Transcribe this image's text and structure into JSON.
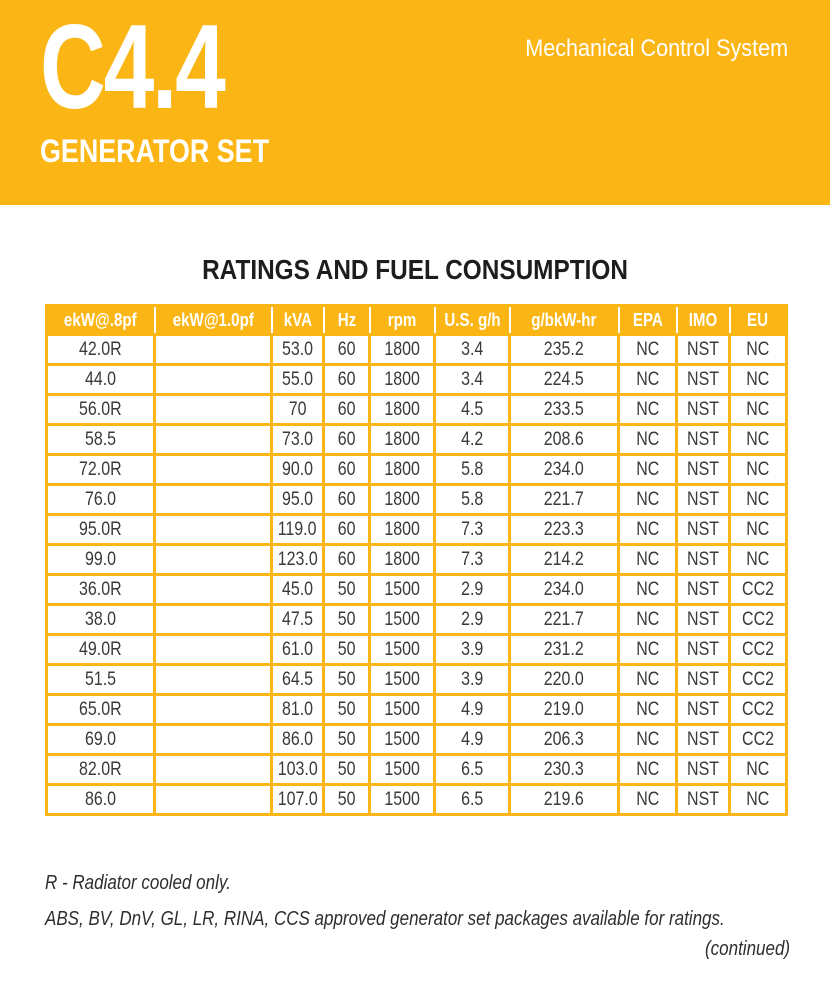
{
  "colors": {
    "accent_yellow": "#FBB615",
    "banner_text": "#FFFFFF",
    "body_text": "#3A3A3A"
  },
  "banner": {
    "model": "C4.4",
    "subtitle": "GENERATOR SET",
    "tagline": "Mechanical Control System"
  },
  "section": {
    "title": "RATINGS AND FUEL CONSUMPTION"
  },
  "table": {
    "columns": [
      "ekW@.8pf",
      "ekW@1.0pf",
      "kVA",
      "Hz",
      "rpm",
      "U.S. g/h",
      "g/bkW-hr",
      "EPA",
      "IMO",
      "EU"
    ],
    "rows": [
      [
        "42.0R",
        "",
        "53.0",
        "60",
        "1800",
        "3.4",
        "235.2",
        "NC",
        "NST",
        "NC"
      ],
      [
        "44.0",
        "",
        "55.0",
        "60",
        "1800",
        "3.4",
        "224.5",
        "NC",
        "NST",
        "NC"
      ],
      [
        "56.0R",
        "",
        "70",
        "60",
        "1800",
        "4.5",
        "233.5",
        "NC",
        "NST",
        "NC"
      ],
      [
        "58.5",
        "",
        "73.0",
        "60",
        "1800",
        "4.2",
        "208.6",
        "NC",
        "NST",
        "NC"
      ],
      [
        "72.0R",
        "",
        "90.0",
        "60",
        "1800",
        "5.8",
        "234.0",
        "NC",
        "NST",
        "NC"
      ],
      [
        "76.0",
        "",
        "95.0",
        "60",
        "1800",
        "5.8",
        "221.7",
        "NC",
        "NST",
        "NC"
      ],
      [
        "95.0R",
        "",
        "119.0",
        "60",
        "1800",
        "7.3",
        "223.3",
        "NC",
        "NST",
        "NC"
      ],
      [
        "99.0",
        "",
        "123.0",
        "60",
        "1800",
        "7.3",
        "214.2",
        "NC",
        "NST",
        "NC"
      ],
      [
        "36.0R",
        "",
        "45.0",
        "50",
        "1500",
        "2.9",
        "234.0",
        "NC",
        "NST",
        "CC2"
      ],
      [
        "38.0",
        "",
        "47.5",
        "50",
        "1500",
        "2.9",
        "221.7",
        "NC",
        "NST",
        "CC2"
      ],
      [
        "49.0R",
        "",
        "61.0",
        "50",
        "1500",
        "3.9",
        "231.2",
        "NC",
        "NST",
        "CC2"
      ],
      [
        "51.5",
        "",
        "64.5",
        "50",
        "1500",
        "3.9",
        "220.0",
        "NC",
        "NST",
        "CC2"
      ],
      [
        "65.0R",
        "",
        "81.0",
        "50",
        "1500",
        "4.9",
        "219.0",
        "NC",
        "NST",
        "CC2"
      ],
      [
        "69.0",
        "",
        "86.0",
        "50",
        "1500",
        "4.9",
        "206.3",
        "NC",
        "NST",
        "CC2"
      ],
      [
        "82.0R",
        "",
        "103.0",
        "50",
        "1500",
        "6.5",
        "230.3",
        "NC",
        "NST",
        "NC"
      ],
      [
        "86.0",
        "",
        "107.0",
        "50",
        "1500",
        "6.5",
        "219.6",
        "NC",
        "NST",
        "NC"
      ]
    ]
  },
  "notes": [
    "R - Radiator cooled only.",
    "ABS, BV, DnV, GL, LR, RINA, CCS approved generator set packages available for ratings."
  ],
  "footer": {
    "continued": "(continued)"
  }
}
